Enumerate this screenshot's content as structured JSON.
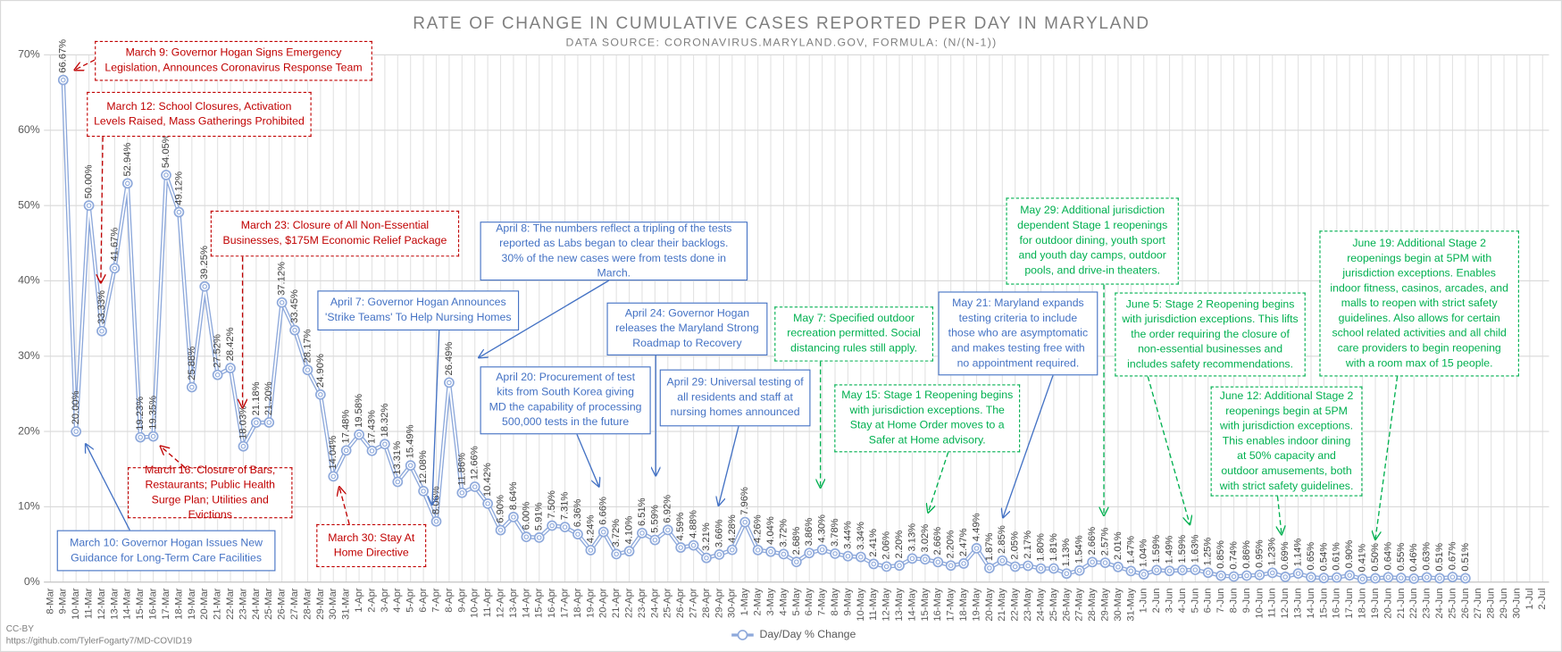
{
  "chart_data": {
    "type": "line",
    "title": "RATE OF CHANGE IN CUMULATIVE CASES REPORTED PER DAY IN MARYLAND",
    "subtitle": "DATA SOURCE: CORONAVIRUS.MARYLAND.GOV, FORMULA: (N/(N-1))",
    "footer": [
      "CC-BY",
      "https://github.com/TylerFogarty7/MD-COVID19"
    ],
    "categories": [
      "8-Mar",
      "9-Mar",
      "10-Mar",
      "11-Mar",
      "12-Mar",
      "13-Mar",
      "14-Mar",
      "15-Mar",
      "16-Mar",
      "17-Mar",
      "18-Mar",
      "19-Mar",
      "20-Mar",
      "21-Mar",
      "22-Mar",
      "23-Mar",
      "24-Mar",
      "25-Mar",
      "26-Mar",
      "27-Mar",
      "28-Mar",
      "29-Mar",
      "30-Mar",
      "31-Mar",
      "1-Apr",
      "2-Apr",
      "3-Apr",
      "4-Apr",
      "5-Apr",
      "6-Apr",
      "7-Apr",
      "8-Apr",
      "9-Apr",
      "10-Apr",
      "11-Apr",
      "12-Apr",
      "13-Apr",
      "14-Apr",
      "15-Apr",
      "16-Apr",
      "17-Apr",
      "18-Apr",
      "19-Apr",
      "20-Apr",
      "21-Apr",
      "22-Apr",
      "23-Apr",
      "24-Apr",
      "25-Apr",
      "26-Apr",
      "27-Apr",
      "28-Apr",
      "29-Apr",
      "30-Apr",
      "1-May",
      "2-May",
      "3-May",
      "4-May",
      "5-May",
      "6-May",
      "7-May",
      "8-May",
      "9-May",
      "10-May",
      "11-May",
      "12-May",
      "13-May",
      "14-May",
      "15-May",
      "16-May",
      "17-May",
      "18-May",
      "19-May",
      "20-May",
      "21-May",
      "22-May",
      "23-May",
      "24-May",
      "25-May",
      "26-May",
      "27-May",
      "28-May",
      "29-May",
      "30-May",
      "31-May",
      "1-Jun",
      "2-Jun",
      "3-Jun",
      "4-Jun",
      "5-Jun",
      "6-Jun",
      "7-Jun",
      "8-Jun",
      "9-Jun",
      "10-Jun",
      "11-Jun",
      "12-Jun",
      "13-Jun",
      "14-Jun",
      "15-Jun",
      "16-Jun",
      "17-Jun",
      "18-Jun",
      "19-Jun",
      "20-Jun",
      "21-Jun",
      "22-Jun",
      "23-Jun",
      "24-Jun",
      "25-Jun",
      "26-Jun",
      "27-Jun",
      "28-Jun",
      "29-Jun",
      "30-Jun",
      "1-Jul",
      "2-Jul"
    ],
    "series": [
      {
        "name": "Day/Day % Change",
        "color": "#8ea9db",
        "values": [
          null,
          66.67,
          20.0,
          50.0,
          33.33,
          41.67,
          52.94,
          19.23,
          19.35,
          54.05,
          49.12,
          25.88,
          39.25,
          27.52,
          28.42,
          18.03,
          21.18,
          21.2,
          37.12,
          33.45,
          28.17,
          24.9,
          14.04,
          17.48,
          19.58,
          17.43,
          18.32,
          13.31,
          15.49,
          12.08,
          8.06,
          26.49,
          11.86,
          12.66,
          10.42,
          6.9,
          8.64,
          6.0,
          5.91,
          7.5,
          7.31,
          6.36,
          4.24,
          6.66,
          3.72,
          4.1,
          6.51,
          5.59,
          6.92,
          4.59,
          4.88,
          3.21,
          3.66,
          4.28,
          7.96,
          4.26,
          4.04,
          3.72,
          2.68,
          3.86,
          4.3,
          3.78,
          3.44,
          3.34,
          2.41,
          2.06,
          2.2,
          3.13,
          3.02,
          2.66,
          2.2,
          2.47,
          4.49,
          1.87,
          2.85,
          2.05,
          2.17,
          1.8,
          1.81,
          1.13,
          1.54,
          2.66,
          2.57,
          2.01,
          1.47,
          1.04,
          1.59,
          1.49,
          1.59,
          1.63,
          1.25,
          0.85,
          0.74,
          0.86,
          0.95,
          1.23,
          0.69,
          1.14,
          0.65,
          0.54,
          0.61,
          0.9,
          0.41,
          0.5,
          0.64,
          0.55,
          0.46,
          0.63,
          0.51,
          0.67,
          0.51,
          null,
          null,
          null,
          null,
          null,
          null
        ],
        "value_labels": [
          null,
          "66.67%",
          "20.00%",
          "50.00%",
          "33.33%",
          "41.67%",
          "52.94%",
          "19.23%",
          "19.35%",
          "54.05%",
          "49.12%",
          "25.88%",
          "39.25%",
          "27.52%",
          "28.42%",
          "18.03%",
          "21.18%",
          "21.20%",
          "37.12%",
          "33.45%",
          "28.17%",
          "24.90%",
          "14.04%",
          "17.48%",
          "19.58%",
          "17.43%",
          "18.32%",
          "13.31%",
          "15.49%",
          "12.08%",
          "8.06%",
          "26.49%",
          "11.86%",
          "12.66%",
          "10.42%",
          "6.90%",
          "8.64%",
          "6.00%",
          "5.91%",
          "7.50%",
          "7.31%",
          "6.36%",
          "4.24%",
          "6.66%",
          "3.72%",
          "4.10%",
          "6.51%",
          "5.59%",
          "6.92%",
          "4.59%",
          "4.88%",
          "3.21%",
          "3.66%",
          "4.28%",
          "7.96%",
          "4.26%",
          "4.04%",
          "3.72%",
          "2.68%",
          "3.86%",
          "4.30%",
          "3.78%",
          "3.44%",
          "3.34%",
          "2.41%",
          "2.06%",
          "2.20%",
          "3.13%",
          "3.02%",
          "2.66%",
          "2.20%",
          "2.47%",
          "4.49%",
          "1.87%",
          "2.85%",
          "2.05%",
          "2.17%",
          "1.80%",
          "1.81%",
          "1.13%",
          "1.54%",
          "2.66%",
          "2.57%",
          "2.01%",
          "1.47%",
          "1.04%",
          "1.59%",
          "1.49%",
          "1.59%",
          "1.63%",
          "1.25%",
          "0.85%",
          "0.74%",
          "0.86%",
          "0.95%",
          "1.23%",
          "0.69%",
          "1.14%",
          "0.65%",
          "0.54%",
          "0.61%",
          "0.90%",
          "0.41%",
          "0.50%",
          "0.64%",
          "0.55%",
          "0.46%",
          "0.63%",
          "0.51%",
          "0.67%",
          "0.51%",
          null,
          null,
          null,
          null,
          null,
          null
        ]
      }
    ],
    "ylim": [
      0,
      70
    ],
    "yticks": [
      {
        "value": 0,
        "label": "0%"
      },
      {
        "value": 10,
        "label": "10%"
      },
      {
        "value": 20,
        "label": "20%"
      },
      {
        "value": 30,
        "label": "30%"
      },
      {
        "value": 40,
        "label": "40%"
      },
      {
        "value": 50,
        "label": "50%"
      },
      {
        "value": 60,
        "label": "60%"
      },
      {
        "value": 70,
        "label": "70%"
      }
    ],
    "grid": true,
    "legend": "bottom",
    "annotations": [
      "March 9: Governor Hogan Signs Emergency Legislation, Announces Coronavirus Response Team",
      "March 12: School Closures, Activation Levels Raised, Mass Gatherings Prohibited",
      "March 23: Closure of All Non-Essential Businesses, $175M Economic Relief Package",
      "March 16: Closure of Bars, Restaurants; Public Health Surge Plan; Utilities and Evictions",
      "March 30: Stay At Home Directive",
      "March 10: Governor Hogan Issues New Guidance for Long-Term Care Facilities",
      "April 7: Governor Hogan Announces 'Strike Teams' To Help Nursing Homes",
      "April 8: The numbers reflect a tripling of the tests reported as Labs began to clear their backlogs. 30% of the new cases were from tests done in March.",
      "April 24: Governor Hogan releases the Maryland Strong Roadmap to Recovery",
      "April 20: Procurement of test kits from South Korea giving MD the capability of processing 500,000 tests in the future",
      "April 29: Universal testing of all residents and staff at nursing homes announced",
      "May 7: Specified outdoor recreation permitted. Social distancing rules still apply.",
      "May 15: Stage 1 Reopening begins with jurisdiction exceptions. The Stay at Home Order moves to a Safer at Home advisory.",
      "May 21: Maryland expands testing criteria to include those who are asymptomatic and makes testing free with no appointment required.",
      "May 29: Additional jurisdiction dependent Stage 1 reopenings for outdoor dining, youth sport and youth day camps, outdoor pools, and drive-in theaters.",
      "June 5: Stage 2 Reopening begins with jurisdiction exceptions. This lifts the order requiring the closure of non-essential businesses and includes safety recommendations.",
      "June 12: Additional Stage 2 reopenings begin at 5PM with jurisdiction exceptions. This enables indoor dining at 50% capacity and outdoor amusements, both with strict safety guidelines.",
      "June 19: Additional Stage 2 reopenings begin at 5PM with jurisdiction exceptions. Enables indoor fitness, casinos, arcades, and malls to reopen with strict safety guidelines. Also allows for certain school related activities and all child care providers to begin reopening with a room max of 15 people."
    ]
  }
}
